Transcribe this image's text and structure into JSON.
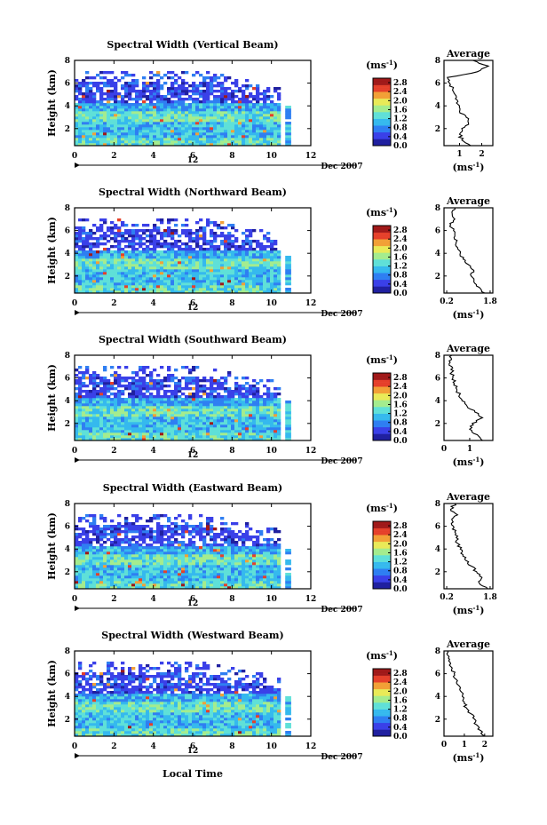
{
  "figure": {
    "xlabel": "Local Time",
    "date_label": "Dec 2007",
    "day_label": "12",
    "colorbar_unit": "(ms",
    "colorbar_unit_sup": "-1",
    "colorbar_unit_close": ")",
    "avg_title": "Average",
    "colors": {
      "colormap": [
        "#2020a0",
        "#3a40e8",
        "#2f7ff2",
        "#35b9ee",
        "#5fe0d8",
        "#a4ec8e",
        "#e9ea58",
        "#f2a037",
        "#e5402a",
        "#a01818"
      ]
    }
  },
  "chart_data": [
    {
      "type": "heatmap",
      "title": "Spectral Width (Vertical Beam)",
      "ylabel": "Height (km)",
      "x_ticks": [
        0,
        2,
        4,
        6,
        8,
        10,
        12
      ],
      "y_ticks": [
        2,
        4,
        6,
        8
      ],
      "xlim": [
        0,
        12
      ],
      "ylim": [
        0.5,
        8
      ],
      "colorbar_ticks": [
        "0.0",
        "0.4",
        "0.8",
        "1.2",
        "1.6",
        "2.0",
        "2.4",
        "2.8"
      ],
      "colorbar_range": [
        0,
        3
      ],
      "data_coverage": {
        "time_end_h": 10.3,
        "top_km": 6.5,
        "isolated_column_h": [
          10.7,
          11.0
        ]
      },
      "average_profile": {
        "xlabel": "(ms",
        "x_ticks": [
          "1",
          "2"
        ],
        "xlim": [
          0.3,
          2.5
        ],
        "y_ticks": [
          2,
          4,
          6,
          8
        ],
        "height_km": [
          0.5,
          1,
          1.5,
          2,
          2.5,
          3,
          3.5,
          4,
          4.5,
          5,
          5.5,
          6,
          6.5,
          7,
          7.5,
          8
        ],
        "width_ms": [
          1.5,
          1.1,
          1.0,
          1.1,
          1.4,
          1.3,
          1.0,
          1.0,
          0.9,
          0.8,
          0.7,
          0.55,
          0.45,
          1.8,
          2.3,
          1.6
        ]
      }
    },
    {
      "type": "heatmap",
      "title": "Spectral Width (Northward Beam)",
      "ylabel": "Height (km)",
      "x_ticks": [
        0,
        2,
        4,
        6,
        8,
        10,
        12
      ],
      "y_ticks": [
        2,
        4,
        6,
        8
      ],
      "xlim": [
        0,
        12
      ],
      "ylim": [
        0.5,
        8
      ],
      "colorbar_ticks": [
        "0.0",
        "0.4",
        "0.8",
        "1.2",
        "1.6",
        "2.0",
        "2.4",
        "2.8"
      ],
      "colorbar_range": [
        0,
        3
      ],
      "data_coverage": {
        "time_end_h": 10.3,
        "top_km": 6.5,
        "isolated_column_h": [
          10.7,
          11.0
        ]
      },
      "average_profile": {
        "xlabel": "(ms",
        "x_ticks": [
          "0.2",
          "1.8"
        ],
        "xlim": [
          0.1,
          1.9
        ],
        "y_ticks": [
          2,
          4,
          6,
          8
        ],
        "height_km": [
          0.5,
          1,
          1.5,
          2,
          2.5,
          3,
          3.5,
          4,
          4.5,
          5,
          5.5,
          6,
          6.5,
          7,
          7.5,
          8
        ],
        "width_ms": [
          1.6,
          1.4,
          1.2,
          1.1,
          1.2,
          1.0,
          0.8,
          0.7,
          0.6,
          0.55,
          0.5,
          0.45,
          0.35,
          0.5,
          0.4,
          0.5
        ]
      }
    },
    {
      "type": "heatmap",
      "title": "Spectral Width (Southward Beam)",
      "ylabel": "Height (km)",
      "x_ticks": [
        0,
        2,
        4,
        6,
        8,
        10,
        12
      ],
      "y_ticks": [
        2,
        4,
        6,
        8
      ],
      "xlim": [
        0,
        12
      ],
      "ylim": [
        0.5,
        8
      ],
      "colorbar_ticks": [
        "0.0",
        "0.4",
        "0.8",
        "1.2",
        "1.6",
        "2.0",
        "2.4",
        "2.8"
      ],
      "colorbar_range": [
        0,
        3
      ],
      "data_coverage": {
        "time_end_h": 10.3,
        "top_km": 6.5,
        "isolated_column_h": [
          10.7,
          11.0
        ]
      },
      "average_profile": {
        "xlabel": "(ms",
        "x_ticks": [
          "0",
          "1"
        ],
        "xlim": [
          0,
          1.9
        ],
        "y_ticks": [
          2,
          4,
          6,
          8
        ],
        "height_km": [
          0.5,
          1,
          1.5,
          2,
          2.5,
          3,
          3.5,
          4,
          4.5,
          5,
          5.5,
          6,
          6.5,
          7,
          7.5,
          8
        ],
        "width_ms": [
          1.5,
          1.3,
          1.0,
          1.1,
          1.5,
          1.2,
          0.9,
          0.7,
          0.6,
          0.5,
          0.4,
          0.35,
          0.3,
          0.3,
          0.2,
          0.3
        ]
      }
    },
    {
      "type": "heatmap",
      "title": "Spectral Width (Eastward Beam)",
      "ylabel": "Height (km)",
      "x_ticks": [
        0,
        2,
        4,
        6,
        8,
        10,
        12
      ],
      "y_ticks": [
        2,
        4,
        6,
        8
      ],
      "xlim": [
        0,
        12
      ],
      "ylim": [
        0.5,
        8
      ],
      "colorbar_ticks": [
        "0.0",
        "0.4",
        "0.8",
        "1.2",
        "1.6",
        "2.0",
        "2.4",
        "2.8"
      ],
      "colorbar_range": [
        0,
        3
      ],
      "data_coverage": {
        "time_end_h": 10.3,
        "top_km": 6.5,
        "isolated_column_h": [
          10.7,
          11.0
        ]
      },
      "average_profile": {
        "xlabel": "(ms",
        "x_ticks": [
          "0.2",
          "1.8"
        ],
        "xlim": [
          0.1,
          1.9
        ],
        "y_ticks": [
          2,
          4,
          6,
          8
        ],
        "height_km": [
          0.5,
          1,
          1.5,
          2,
          2.5,
          3,
          3.5,
          4,
          4.5,
          5,
          5.5,
          6,
          6.5,
          7,
          7.5,
          8
        ],
        "width_ms": [
          1.7,
          1.4,
          1.5,
          1.3,
          1.1,
          0.9,
          0.8,
          0.7,
          0.6,
          0.55,
          0.5,
          0.45,
          0.4,
          0.6,
          0.35,
          0.5
        ]
      }
    },
    {
      "type": "heatmap",
      "title": "Spectral Width (Westward Beam)",
      "ylabel": "Height (km)",
      "x_ticks": [
        0,
        2,
        4,
        6,
        8,
        10,
        12
      ],
      "y_ticks": [
        2,
        4,
        6,
        8
      ],
      "xlim": [
        0,
        12
      ],
      "ylim": [
        0.5,
        8
      ],
      "colorbar_ticks": [
        "0.0",
        "0.4",
        "0.8",
        "1.2",
        "1.6",
        "2.0",
        "2.4",
        "2.8"
      ],
      "colorbar_range": [
        0,
        3
      ],
      "data_coverage": {
        "time_end_h": 10.3,
        "top_km": 6.5,
        "isolated_column_h": [
          10.7,
          11.0
        ]
      },
      "average_profile": {
        "xlabel": "(ms",
        "x_ticks": [
          "0",
          "1",
          "2"
        ],
        "xlim": [
          0,
          2.4
        ],
        "y_ticks": [
          2,
          4,
          6,
          8
        ],
        "height_km": [
          0.5,
          1,
          1.5,
          2,
          2.5,
          3,
          3.5,
          4,
          4.5,
          5,
          5.5,
          6,
          6.5,
          7,
          7.5,
          8
        ],
        "width_ms": [
          2.0,
          1.8,
          1.6,
          1.5,
          1.3,
          1.1,
          1.0,
          0.9,
          0.8,
          0.7,
          0.6,
          0.5,
          0.4,
          0.3,
          0.25,
          0.2
        ]
      }
    }
  ]
}
